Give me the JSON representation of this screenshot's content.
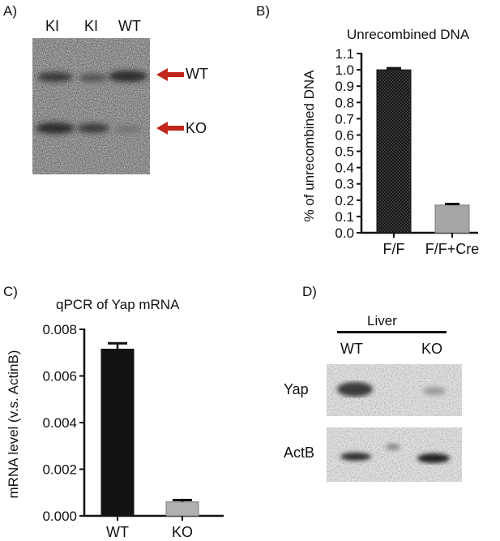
{
  "panelA": {
    "label": "A)",
    "lanes": [
      "KI",
      "KI",
      "WT"
    ],
    "arrows": [
      {
        "label": "WT",
        "color": "#c0261c"
      },
      {
        "label": "KO",
        "color": "#c0261c"
      }
    ]
  },
  "panelD": {
    "label": "D)",
    "group": "Liver",
    "lanes": [
      "WT",
      "KO"
    ],
    "blots": [
      "Yap",
      "ActB"
    ]
  },
  "chart_data": [
    {
      "panel": "B)",
      "type": "bar",
      "title": "Unrecombined DNA",
      "xlabel": "",
      "ylabel": "% of unrecombined DNA",
      "categories": [
        "F/F",
        "F/F+Cre"
      ],
      "values": [
        1.0,
        0.17
      ],
      "errors": [
        0.01,
        0.007
      ],
      "colors": [
        "#2a2a2a",
        "#a6a6a6"
      ],
      "patterns": [
        "checkered",
        "solid"
      ],
      "ylim": [
        0,
        1.1
      ],
      "yticks": [
        "0.0",
        "0.1",
        "0.2",
        "0.3",
        "0.4",
        "0.5",
        "0.6",
        "0.7",
        "0.8",
        "0.9",
        "1.0",
        "1.1"
      ],
      "grid": false
    },
    {
      "panel": "C)",
      "type": "bar",
      "title": "qPCR of Yap mRNA",
      "xlabel": "",
      "ylabel": "mRNA level (v.s. ActinB)",
      "categories": [
        "WT",
        "KO"
      ],
      "values": [
        0.00715,
        0.0006
      ],
      "errors": [
        0.00025,
        8e-05
      ],
      "colors": [
        "#121212",
        "#b0b0b0"
      ],
      "patterns": [
        "solid",
        "solid"
      ],
      "ylim": [
        0,
        0.008
      ],
      "yticks": [
        "0.000",
        "0.002",
        "0.004",
        "0.006",
        "0.008"
      ],
      "grid": false
    }
  ]
}
